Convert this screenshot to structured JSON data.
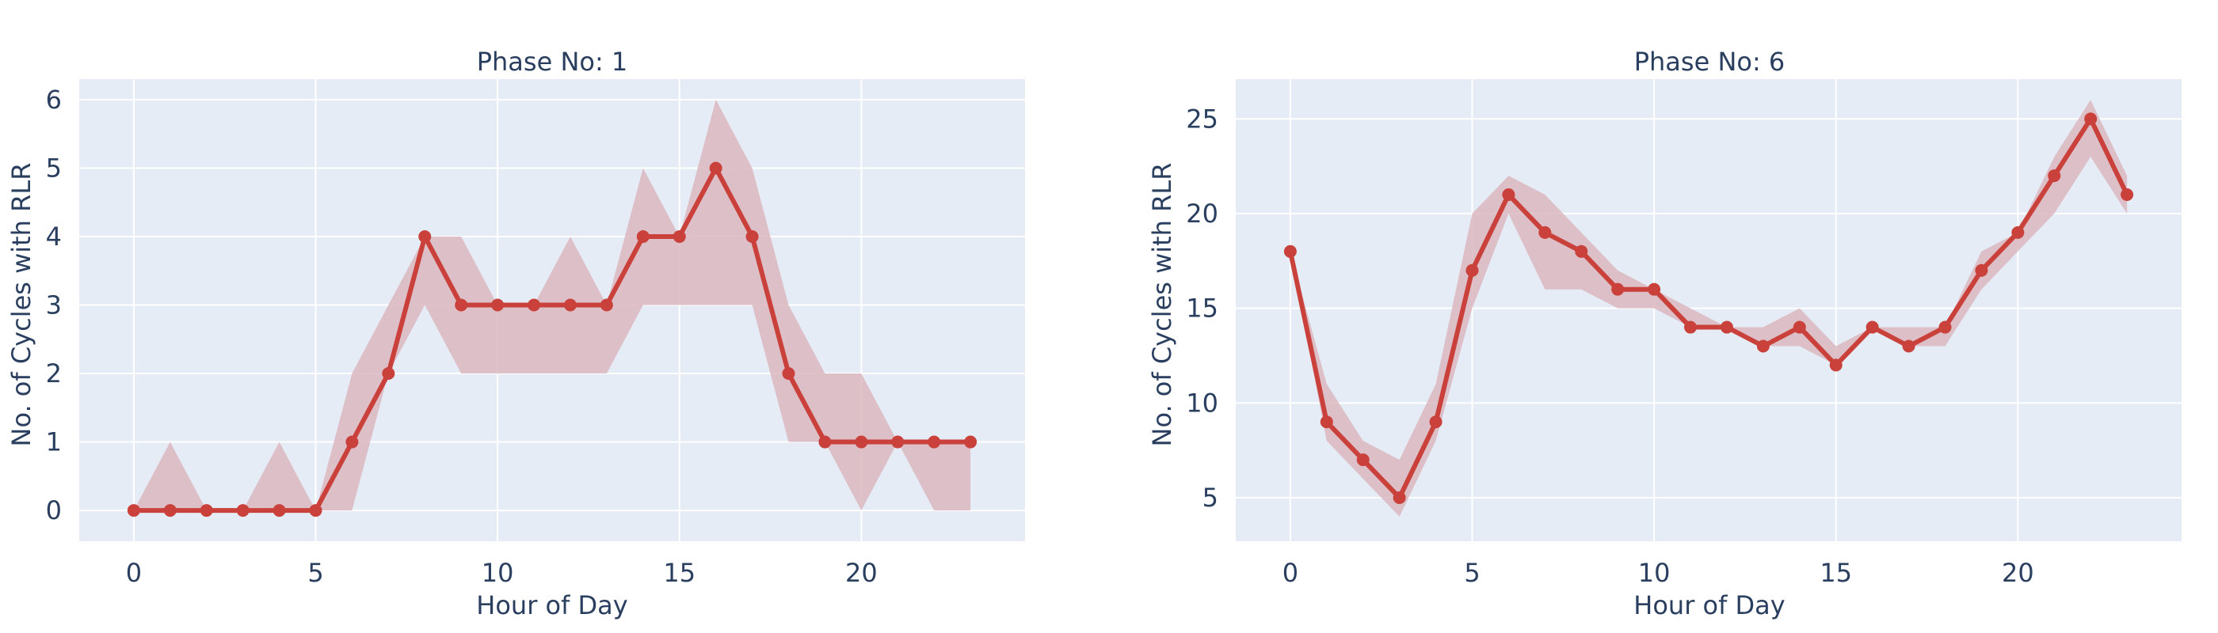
{
  "chart_data": [
    {
      "type": "line",
      "title": "Phase No: 1",
      "xlabel": "Hour of Day",
      "ylabel": "No. of Cycles with RLR",
      "xlim": [
        -1.5,
        24.5
      ],
      "ylim": [
        -0.45,
        6.3
      ],
      "xticks": [
        0,
        5,
        10,
        15,
        20
      ],
      "yticks": [
        0,
        1,
        2,
        3,
        4,
        5,
        6
      ],
      "grid": true,
      "line_color": "#c9413a",
      "band_color": "#dcb7c0",
      "plot_bg": "#e5ecf6",
      "x": [
        0,
        1,
        2,
        3,
        4,
        5,
        6,
        7,
        8,
        9,
        10,
        11,
        12,
        13,
        14,
        15,
        16,
        17,
        18,
        19,
        20,
        21,
        22,
        23
      ],
      "y": [
        0,
        0,
        0,
        0,
        0,
        0,
        1,
        2,
        4,
        3,
        3,
        3,
        3,
        3,
        4,
        4,
        5,
        4,
        2,
        1,
        1,
        1,
        1,
        1
      ],
      "band_upper": [
        0,
        1,
        0,
        0,
        1,
        0,
        2,
        3,
        4,
        4,
        3,
        3,
        4,
        3,
        5,
        4,
        6,
        5,
        3,
        2,
        2,
        1,
        1,
        1
      ],
      "band_lower": [
        0,
        0,
        0,
        0,
        0,
        0,
        0,
        2,
        3,
        2,
        2,
        2,
        2,
        2,
        3,
        3,
        3,
        3,
        1,
        1,
        0,
        1,
        0,
        0
      ]
    },
    {
      "type": "line",
      "title": "Phase No: 6",
      "xlabel": "Hour of Day",
      "ylabel": "No. of Cycles with RLR",
      "xlim": [
        -1.5,
        24.5
      ],
      "ylim": [
        2.7,
        27.1
      ],
      "xticks": [
        0,
        5,
        10,
        15,
        20
      ],
      "yticks": [
        5,
        10,
        15,
        20,
        25
      ],
      "grid": true,
      "line_color": "#c9413a",
      "band_color": "#dcb7c0",
      "plot_bg": "#e5ecf6",
      "x": [
        0,
        1,
        2,
        3,
        4,
        5,
        6,
        7,
        8,
        9,
        10,
        11,
        12,
        13,
        14,
        15,
        16,
        17,
        18,
        19,
        20,
        21,
        22,
        23
      ],
      "y": [
        18,
        9,
        7,
        5,
        9,
        17,
        21,
        19,
        18,
        16,
        16,
        14,
        14,
        13,
        14,
        12,
        14,
        13,
        14,
        17,
        19,
        22,
        25,
        21
      ],
      "band_upper": [
        18,
        11,
        8,
        7,
        11,
        20,
        22,
        21,
        19,
        17,
        16,
        15,
        14,
        14,
        15,
        13,
        14,
        14,
        14,
        18,
        19,
        23,
        26,
        22
      ],
      "band_lower": [
        18,
        8,
        6,
        4,
        8,
        15,
        20,
        16,
        16,
        15,
        15,
        14,
        14,
        13,
        13,
        12,
        14,
        13,
        13,
        16,
        18,
        20,
        23,
        20
      ]
    }
  ]
}
